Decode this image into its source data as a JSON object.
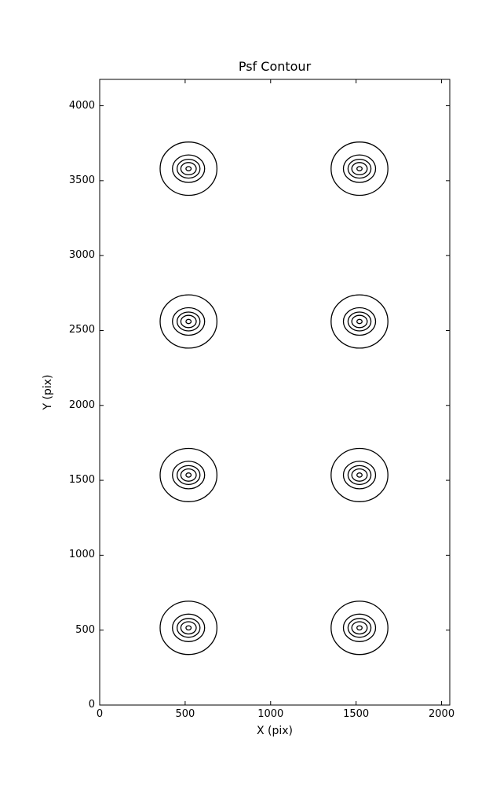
{
  "figure": {
    "background": "#ffffff",
    "line_color": "#000000"
  },
  "chart_data": {
    "type": "contour",
    "title": "Psf Contour",
    "xlabel": "X (pix)",
    "ylabel": "Y (pix)",
    "xlim": [
      0,
      2048
    ],
    "ylim": [
      0,
      4176
    ],
    "xticks": [
      0,
      500,
      1000,
      1500,
      2000
    ],
    "yticks": [
      0,
      500,
      1000,
      1500,
      2000,
      2500,
      3000,
      3500,
      4000
    ],
    "grid": false,
    "legend": "none",
    "series_description": "8 point-spread-function contour groups arranged in a 2-column by 4-row grid, each group is 5 nested closed contour levels",
    "psf_centers": [
      {
        "x": 520,
        "y": 3580
      },
      {
        "x": 1520,
        "y": 3580
      },
      {
        "x": 520,
        "y": 2560
      },
      {
        "x": 1520,
        "y": 2560
      },
      {
        "x": 520,
        "y": 1535
      },
      {
        "x": 1520,
        "y": 1535
      },
      {
        "x": 520,
        "y": 515
      },
      {
        "x": 1520,
        "y": 515
      }
    ],
    "contour_level_radii_pix_units": [
      [
        166,
        178
      ],
      [
        94,
        92
      ],
      [
        67,
        63
      ],
      [
        45,
        41
      ],
      [
        15,
        14
      ]
    ]
  }
}
